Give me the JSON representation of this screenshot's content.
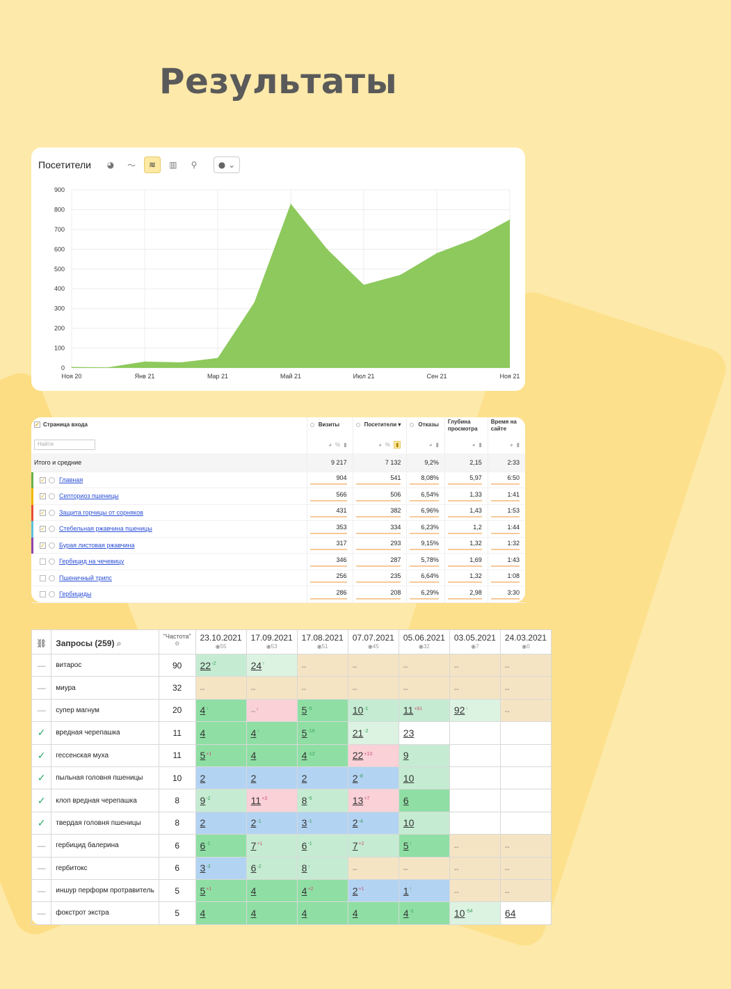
{
  "page": {
    "title": "Результаты"
  },
  "visitors_chart": {
    "title": "Посетители",
    "toolbar": [
      {
        "name": "pie-chart-icon",
        "glyph": "◕",
        "active": false
      },
      {
        "name": "line-chart-icon",
        "glyph": "〜",
        "active": false
      },
      {
        "name": "area-chart-icon",
        "glyph": "≋",
        "active": true
      },
      {
        "name": "bar-chart-icon",
        "glyph": "▥",
        "active": false
      },
      {
        "name": "map-icon",
        "glyph": "⚲",
        "active": false
      }
    ],
    "annotations_dropdown": {
      "glyph": "● ⌄"
    },
    "chart_data": {
      "type": "area",
      "title": "Посетители",
      "x_labels": [
        "Ноя 20",
        "Янв 21",
        "Мар 21",
        "Май 21",
        "Июл 21",
        "Сен 21",
        "Ноя 21"
      ],
      "x": [
        0,
        0.5,
        1,
        1.5,
        2,
        2.5,
        3,
        3.5,
        4,
        4.5,
        5,
        5.5,
        6
      ],
      "values": [
        5,
        3,
        32,
        28,
        50,
        330,
        830,
        600,
        420,
        470,
        580,
        650,
        750
      ],
      "ylim": [
        0,
        900
      ],
      "yticks": [
        0,
        100,
        200,
        300,
        400,
        500,
        600,
        700,
        800,
        900
      ],
      "color": "#8dc95c"
    }
  },
  "pages_table": {
    "header": {
      "page_entry": "Страница входа",
      "visits": "Визиты",
      "visitors": "Посетители",
      "bounce": "Отказы",
      "depth": "Глубина просмотра",
      "time": "Время на сайте"
    },
    "search_placeholder": "Найти",
    "total": {
      "label": "Итого и средние",
      "visits": "9 217",
      "visitors": "7 132",
      "bounce": "9,2%",
      "depth": "2,15",
      "time": "2:33"
    },
    "rows": [
      {
        "label": "Главная",
        "visits": "904",
        "visitors": "541",
        "bounce": "8,08%",
        "depth": "5,97",
        "time": "6:50",
        "checked": true,
        "color": "#6ab04c"
      },
      {
        "label": "Септориоз пшеницы",
        "visits": "566",
        "visitors": "506",
        "bounce": "6,54%",
        "depth": "1,33",
        "time": "1:41",
        "checked": true,
        "color": "#f2b705"
      },
      {
        "label": "Защита горчицы от сорняков",
        "visits": "431",
        "visitors": "382",
        "bounce": "6,96%",
        "depth": "1,43",
        "time": "1:53",
        "checked": true,
        "color": "#e74c3c"
      },
      {
        "label": "Стебельная ржавчина пшеницы",
        "visits": "353",
        "visitors": "334",
        "bounce": "6,23%",
        "depth": "1,2",
        "time": "1:44",
        "checked": true,
        "color": "#5bc0de"
      },
      {
        "label": "Бурая листовая ржавчина",
        "visits": "317",
        "visitors": "293",
        "bounce": "9,15%",
        "depth": "1,32",
        "time": "1:32",
        "checked": true,
        "color": "#8e44ad"
      },
      {
        "label": "Гербицид на чечевицу",
        "visits": "346",
        "visitors": "287",
        "bounce": "5,78%",
        "depth": "1,69",
        "time": "1:43",
        "checked": false,
        "color": ""
      },
      {
        "label": "Пшеничный трипс",
        "visits": "256",
        "visitors": "235",
        "bounce": "6,64%",
        "depth": "1,32",
        "time": "1:08",
        "checked": false,
        "color": ""
      },
      {
        "label": "Гербициды",
        "visits": "286",
        "visitors": "208",
        "bounce": "6,29%",
        "depth": "2,98",
        "time": "3:30",
        "checked": false,
        "color": ""
      }
    ]
  },
  "positions_table": {
    "header": {
      "query": "Запросы (259)",
      "freq": "\"Частота\""
    },
    "dates": [
      {
        "d": "23.10.2021",
        "c": "55"
      },
      {
        "d": "17.09.2021",
        "c": "53"
      },
      {
        "d": "17.08.2021",
        "c": "51"
      },
      {
        "d": "07.07.2021",
        "c": "45"
      },
      {
        "d": "05.06.2021",
        "c": "32"
      },
      {
        "d": "03.05.2021",
        "c": "7"
      },
      {
        "d": "24.03.2021",
        "c": "0"
      }
    ],
    "rows": [
      {
        "status": "—",
        "q": "витарос",
        "f": "90",
        "p": [
          [
            "22",
            "-2",
            "g1"
          ],
          [
            "24",
            "↑",
            "lg"
          ],
          [
            "--",
            "",
            "y"
          ],
          [
            "--",
            "",
            "y"
          ],
          [
            "--",
            "",
            "y"
          ],
          [
            "--",
            "",
            "y"
          ],
          [
            "--",
            "",
            "y"
          ]
        ]
      },
      {
        "status": "—",
        "q": "миура",
        "f": "32",
        "p": [
          [
            "--",
            "",
            "y"
          ],
          [
            "--",
            "",
            "y"
          ],
          [
            "--",
            "",
            "y"
          ],
          [
            "--",
            "",
            "y"
          ],
          [
            "--",
            "",
            "y"
          ],
          [
            "--",
            "",
            "y"
          ],
          [
            "--",
            "",
            "y"
          ]
        ]
      },
      {
        "status": "—",
        "q": "супер магнум",
        "f": "20",
        "p": [
          [
            "4",
            "↑",
            "g2"
          ],
          [
            "--",
            "↓",
            "r"
          ],
          [
            "5",
            "-5",
            "g2"
          ],
          [
            "10",
            "-1",
            "g1"
          ],
          [
            "11",
            "+81",
            "g1"
          ],
          [
            "92",
            "↑",
            "lg"
          ],
          [
            "--",
            "",
            "y"
          ]
        ]
      },
      {
        "status": "✓",
        "q": "вредная черепашка",
        "f": "11",
        "p": [
          [
            "4",
            "",
            "g2"
          ],
          [
            "4",
            "↑",
            "g2"
          ],
          [
            "5",
            "-16",
            "g2"
          ],
          [
            "21",
            "-2",
            "lg"
          ],
          [
            "23",
            "",
            "w"
          ],
          [
            "",
            "",
            "w"
          ],
          [
            "",
            "",
            "w"
          ]
        ]
      },
      {
        "status": "✓",
        "q": "гессенская муха",
        "f": "11",
        "p": [
          [
            "5",
            "+1",
            "g2"
          ],
          [
            "4",
            "",
            "g2"
          ],
          [
            "4",
            "-12",
            "g2"
          ],
          [
            "22",
            "+13",
            "r"
          ],
          [
            "9",
            "",
            "g1"
          ],
          [
            "",
            "",
            "w"
          ],
          [
            "",
            "",
            "w"
          ]
        ]
      },
      {
        "status": "✓",
        "q": "пыльная головня пшеницы",
        "f": "10",
        "p": [
          [
            "2",
            "",
            "b"
          ],
          [
            "2",
            "",
            "b"
          ],
          [
            "2",
            "",
            "b"
          ],
          [
            "2",
            "-8",
            "b"
          ],
          [
            "10",
            "",
            "g1"
          ],
          [
            "",
            "",
            "w"
          ],
          [
            "",
            "",
            "w"
          ]
        ]
      },
      {
        "status": "✓",
        "q": "клоп вредная черепашка",
        "f": "8",
        "p": [
          [
            "9",
            "-2",
            "g1"
          ],
          [
            "11",
            "+3",
            "r"
          ],
          [
            "8",
            "-5",
            "g1"
          ],
          [
            "13",
            "+7",
            "r"
          ],
          [
            "6",
            "",
            "g2"
          ],
          [
            "",
            "",
            "w"
          ],
          [
            "",
            "",
            "w"
          ]
        ]
      },
      {
        "status": "✓",
        "q": "твердая головня пшеницы",
        "f": "8",
        "p": [
          [
            "2",
            "",
            "b"
          ],
          [
            "2",
            "-1",
            "b"
          ],
          [
            "3",
            "-1",
            "b"
          ],
          [
            "2",
            "-4",
            "b"
          ],
          [
            "10",
            "",
            "g1"
          ],
          [
            "",
            "",
            "w"
          ],
          [
            "",
            "",
            "w"
          ]
        ]
      },
      {
        "status": "—",
        "q": "гербицид балерина",
        "f": "6",
        "p": [
          [
            "6",
            "-1",
            "g2"
          ],
          [
            "7",
            "+1",
            "g1"
          ],
          [
            "6",
            "-1",
            "g1"
          ],
          [
            "7",
            "+2",
            "g1"
          ],
          [
            "5",
            "↑",
            "g2"
          ],
          [
            "--",
            "",
            "y"
          ],
          [
            "--",
            "",
            "y"
          ]
        ]
      },
      {
        "status": "—",
        "q": "гербитокс",
        "f": "6",
        "p": [
          [
            "3",
            "-3",
            "b"
          ],
          [
            "6",
            "-2",
            "g1"
          ],
          [
            "8",
            "↑",
            "g1"
          ],
          [
            "--",
            "",
            "y"
          ],
          [
            "--",
            "",
            "y"
          ],
          [
            "--",
            "",
            "y"
          ],
          [
            "--",
            "",
            "y"
          ]
        ]
      },
      {
        "status": "—",
        "q": "иншур перформ протравитель",
        "f": "5",
        "p": [
          [
            "5",
            "+1",
            "g2"
          ],
          [
            "4",
            "",
            "g2"
          ],
          [
            "4",
            "+2",
            "g2"
          ],
          [
            "2",
            "+1",
            "b"
          ],
          [
            "1",
            "↑",
            "b"
          ],
          [
            "--",
            "",
            "y"
          ],
          [
            "--",
            "",
            "y"
          ]
        ]
      },
      {
        "status": "—",
        "q": "фокстрот экстра",
        "f": "5",
        "p": [
          [
            "4",
            "",
            "g2"
          ],
          [
            "4",
            "",
            "g2"
          ],
          [
            "4",
            "",
            "g2"
          ],
          [
            "4",
            "",
            "g2"
          ],
          [
            "4",
            "-1",
            "g2"
          ],
          [
            "10",
            "-54",
            "lg"
          ],
          [
            "64",
            "",
            "w"
          ]
        ]
      }
    ]
  }
}
